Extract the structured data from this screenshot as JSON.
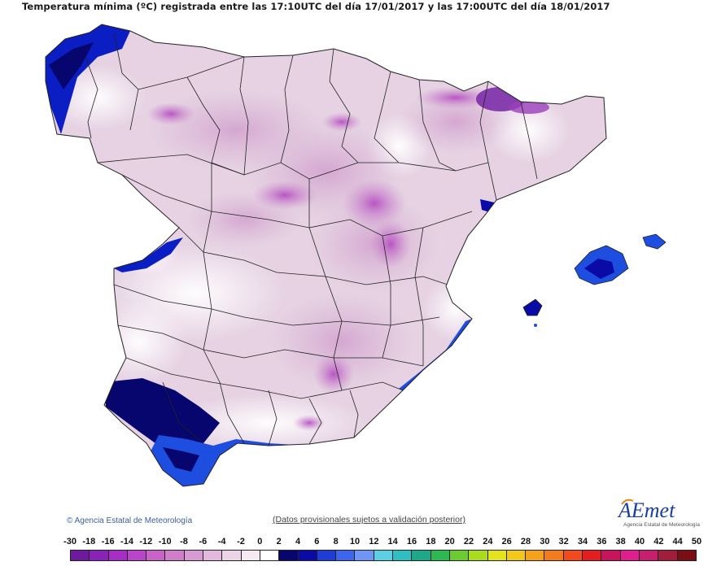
{
  "title": "Temperatura mínima (ºC) registrada entre las 17:10UTC del día 17/01/2017 y las 17:00UTC del día 18/01/2017",
  "footer": {
    "agency": "Agencia Estatal de Meteorología",
    "disclaimer": "(Datos provisionales sujetos a validación posterior)",
    "logo_text": "AEmet",
    "logo_sub": "Agencia Estatal de Meteorología"
  },
  "legend": {
    "labels": [
      "-30",
      "-18",
      "-16",
      "-14",
      "-12",
      "-10",
      "-8",
      "-6",
      "-4",
      "-2",
      "0",
      "2",
      "4",
      "6",
      "8",
      "10",
      "12",
      "14",
      "16",
      "18",
      "20",
      "22",
      "24",
      "26",
      "28",
      "30",
      "32",
      "34",
      "36",
      "38",
      "40",
      "42",
      "44",
      "50"
    ],
    "colors": [
      "#6e1a9e",
      "#8a22b8",
      "#a52ec6",
      "#bb44cc",
      "#c963c8",
      "#d07ec9",
      "#d89ad2",
      "#e2b9dc",
      "#ecd4e6",
      "#f5eaf1",
      "#ffffff",
      "#06066e",
      "#0a0aa6",
      "#1e3cd6",
      "#3c66ee",
      "#6e96f4",
      "#5ccfe6",
      "#2ebfc2",
      "#1ea88a",
      "#2eb852",
      "#6acc2e",
      "#aadc1e",
      "#e4e41e",
      "#f4c81a",
      "#f4a21a",
      "#f47a1e",
      "#f24a1e",
      "#e41e1e",
      "#c8145a",
      "#e01e8e",
      "#c81e6e",
      "#a01e3c",
      "#7a0e14"
    ],
    "map_palette": {
      "bg_land": "#e9d8e6",
      "light": "#f4eaf2",
      "mid": "#d8b4d4",
      "strong": "#c98bc8",
      "magenta": "#b64fc3",
      "purple": "#7c2fa8",
      "deep_blue": "#06066e",
      "blue": "#0a1ec4",
      "bright_blue": "#1e4ee0",
      "border": "#222222"
    }
  }
}
